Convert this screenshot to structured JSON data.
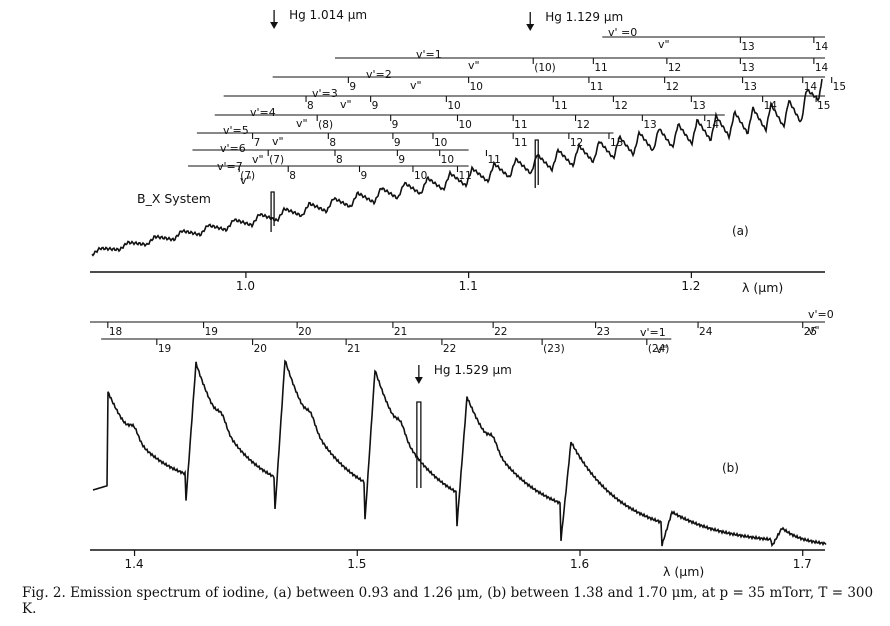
{
  "chart_data": [
    {
      "id": "a",
      "type": "line",
      "label": "(a)",
      "system_label": "B_X   System",
      "xlabel": "λ (μm)",
      "xlim": [
        0.93,
        1.26
      ],
      "xticks": [
        1.0,
        1.1,
        1.2
      ],
      "xtick_labels": [
        "1.0",
        "1.1",
        "1.2"
      ],
      "hg_lines": [
        {
          "text": "Hg   1.014 μm",
          "x": 1.014
        },
        {
          "text": "Hg  1.129 μm",
          "x": 1.129
        }
      ],
      "band_rows": [
        {
          "label": "v' =0",
          "sublabel": "v\"",
          "start": 1.16,
          "end": 1.26,
          "marks": [
            {
              "t": "13",
              "x": 1.222
            },
            {
              "t": "14",
              "x": 1.255
            }
          ]
        },
        {
          "label": "v'=1",
          "sublabel": "v\"",
          "start": 1.04,
          "end": 1.26,
          "marks": [
            {
              "t": "(10)",
              "x": 1.129
            },
            {
              "t": "11",
              "x": 1.156
            },
            {
              "t": "12",
              "x": 1.189
            },
            {
              "t": "13",
              "x": 1.222
            },
            {
              "t": "14",
              "x": 1.255
            }
          ]
        },
        {
          "label": "v'=2",
          "sublabel": "v\"",
          "start": 1.012,
          "end": 1.26,
          "marks": [
            {
              "t": "9",
              "x": 1.046
            },
            {
              "t": "10",
              "x": 1.1
            },
            {
              "t": "11",
              "x": 1.154
            },
            {
              "t": "12",
              "x": 1.188
            },
            {
              "t": "13",
              "x": 1.223
            },
            {
              "t": "14",
              "x": 1.25
            },
            {
              "t": "15",
              "x": 1.263
            }
          ]
        },
        {
          "label": "v'=3",
          "sublabel": "v\"",
          "start": 0.99,
          "end": 1.26,
          "marks": [
            {
              "t": "8",
              "x": 1.027
            },
            {
              "t": "9",
              "x": 1.056
            },
            {
              "t": "10",
              "x": 1.09
            },
            {
              "t": "11",
              "x": 1.138
            },
            {
              "t": "12",
              "x": 1.165
            },
            {
              "t": "13",
              "x": 1.2
            },
            {
              "t": "14",
              "x": 1.232
            },
            {
              "t": "15",
              "x": 1.256
            }
          ]
        },
        {
          "label": "v'=4",
          "sublabel": "v\"",
          "start": 0.986,
          "end": 1.215,
          "marks": [
            {
              "t": "(8)",
              "x": 1.032
            },
            {
              "t": "9",
              "x": 1.065
            },
            {
              "t": "10",
              "x": 1.095
            },
            {
              "t": "11",
              "x": 1.12
            },
            {
              "t": "12",
              "x": 1.148
            },
            {
              "t": "13",
              "x": 1.178
            },
            {
              "t": "14",
              "x": 1.206
            }
          ]
        },
        {
          "label": "v'=5",
          "sublabel": "v\"",
          "start": 0.978,
          "end": 1.165,
          "marks": [
            {
              "t": "7",
              "x": 1.003
            },
            {
              "t": "8",
              "x": 1.037
            },
            {
              "t": "9",
              "x": 1.066
            },
            {
              "t": "10",
              "x": 1.084
            },
            {
              "t": "11",
              "x": 1.12
            },
            {
              "t": "12",
              "x": 1.145
            },
            {
              "t": "13",
              "x": 1.163
            }
          ]
        },
        {
          "label": "v'=6",
          "sublabel": "v\"",
          "start": 0.976,
          "end": 1.1,
          "marks": [
            {
              "t": "(7)",
              "x": 1.01
            },
            {
              "t": "8",
              "x": 1.04
            },
            {
              "t": "9",
              "x": 1.068
            },
            {
              "t": "10",
              "x": 1.087
            },
            {
              "t": "11",
              "x": 1.108
            }
          ]
        },
        {
          "label": "v'=7",
          "sublabel": "v\"",
          "start": 0.974,
          "end": 1.1,
          "marks": [
            {
              "t": "(7)",
              "x": 0.997
            },
            {
              "t": "8",
              "x": 1.019
            },
            {
              "t": "9",
              "x": 1.051
            },
            {
              "t": "10",
              "x": 1.075
            },
            {
              "t": "11",
              "x": 1.095
            }
          ]
        }
      ]
    },
    {
      "id": "b",
      "type": "line",
      "label": "(b)",
      "xlabel": "λ (μm)",
      "xlim": [
        1.38,
        1.71
      ],
      "xticks": [
        1.4,
        1.5,
        1.6,
        1.7
      ],
      "xtick_labels": [
        "1.4",
        "1.5",
        "1.6",
        "1.7"
      ],
      "hg_lines": [
        {
          "text": "Hg  1.529 μm",
          "x": 1.529
        }
      ],
      "band_rows": [
        {
          "label": "v'=0",
          "sublabel": "v\"",
          "start": 1.38,
          "end": 1.71,
          "marks": [
            {
              "t": "18",
              "x": 1.388
            },
            {
              "t": "19",
              "x": 1.431
            },
            {
              "t": "20",
              "x": 1.473
            },
            {
              "t": "21",
              "x": 1.516
            },
            {
              "t": "22",
              "x": 1.561
            },
            {
              "t": "23",
              "x": 1.607
            },
            {
              "t": "24",
              "x": 1.653
            },
            {
              "t": "25",
              "x": 1.7
            }
          ]
        },
        {
          "label": "v'=1",
          "sublabel": "v\"",
          "start": 1.385,
          "end": 1.641,
          "marks": [
            {
              "t": "19",
              "x": 1.41
            },
            {
              "t": "20",
              "x": 1.453
            },
            {
              "t": "21",
              "x": 1.495
            },
            {
              "t": "22",
              "x": 1.538
            },
            {
              "t": "(23)",
              "x": 1.583
            },
            {
              "t": "(24)",
              "x": 1.63
            }
          ]
        }
      ]
    }
  ],
  "caption": "Fig. 2. Emission spectrum of iodine, (a) between 0.93 and 1.26 μm, (b) between 1.38 and 1.70 μm, at p = 35 mTorr, T = 300 K."
}
